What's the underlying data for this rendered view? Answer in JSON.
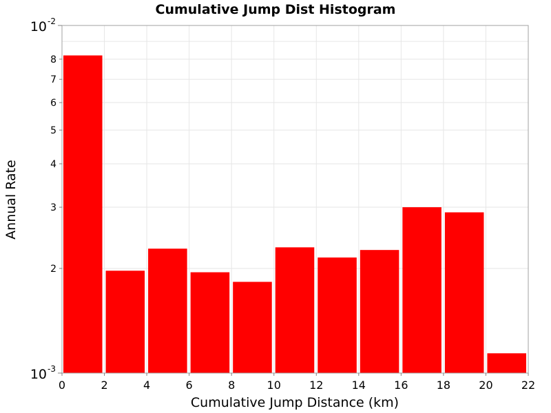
{
  "chart_data": {
    "type": "bar",
    "title": "Cumulative Jump Dist Histogram",
    "xlabel": "Cumulative Jump Distance (km)",
    "ylabel": "Annual Rate",
    "x_bins": [
      [
        0,
        2
      ],
      [
        2,
        4
      ],
      [
        4,
        6
      ],
      [
        6,
        8
      ],
      [
        8,
        10
      ],
      [
        10,
        12
      ],
      [
        12,
        14
      ],
      [
        14,
        16
      ],
      [
        16,
        18
      ],
      [
        18,
        20
      ],
      [
        20,
        22
      ]
    ],
    "values": [
      0.0082,
      0.00197,
      0.00228,
      0.00195,
      0.00183,
      0.0023,
      0.00215,
      0.00226,
      0.003,
      0.0029,
      0.00114
    ],
    "xlim": [
      0,
      22
    ],
    "ylim": [
      0.001,
      0.01
    ],
    "y_scale": "log",
    "x_ticks": [
      "0",
      "2",
      "4",
      "6",
      "8",
      "10",
      "12",
      "14",
      "16",
      "18",
      "20",
      "22"
    ],
    "y_minor_ticks": [
      {
        "value": 0.002,
        "label": "2"
      },
      {
        "value": 0.003,
        "label": "3"
      },
      {
        "value": 0.004,
        "label": "4"
      },
      {
        "value": 0.005,
        "label": "5"
      },
      {
        "value": 0.006,
        "label": "6"
      },
      {
        "value": 0.007,
        "label": "7"
      },
      {
        "value": 0.008,
        "label": "8"
      }
    ],
    "y_decades": [
      {
        "value": 0.001,
        "base": "10",
        "exponent": "-3"
      },
      {
        "value": 0.01,
        "base": "10",
        "exponent": "-2"
      }
    ],
    "bar_color": "#ff0000",
    "grid": true,
    "legend": "none"
  }
}
